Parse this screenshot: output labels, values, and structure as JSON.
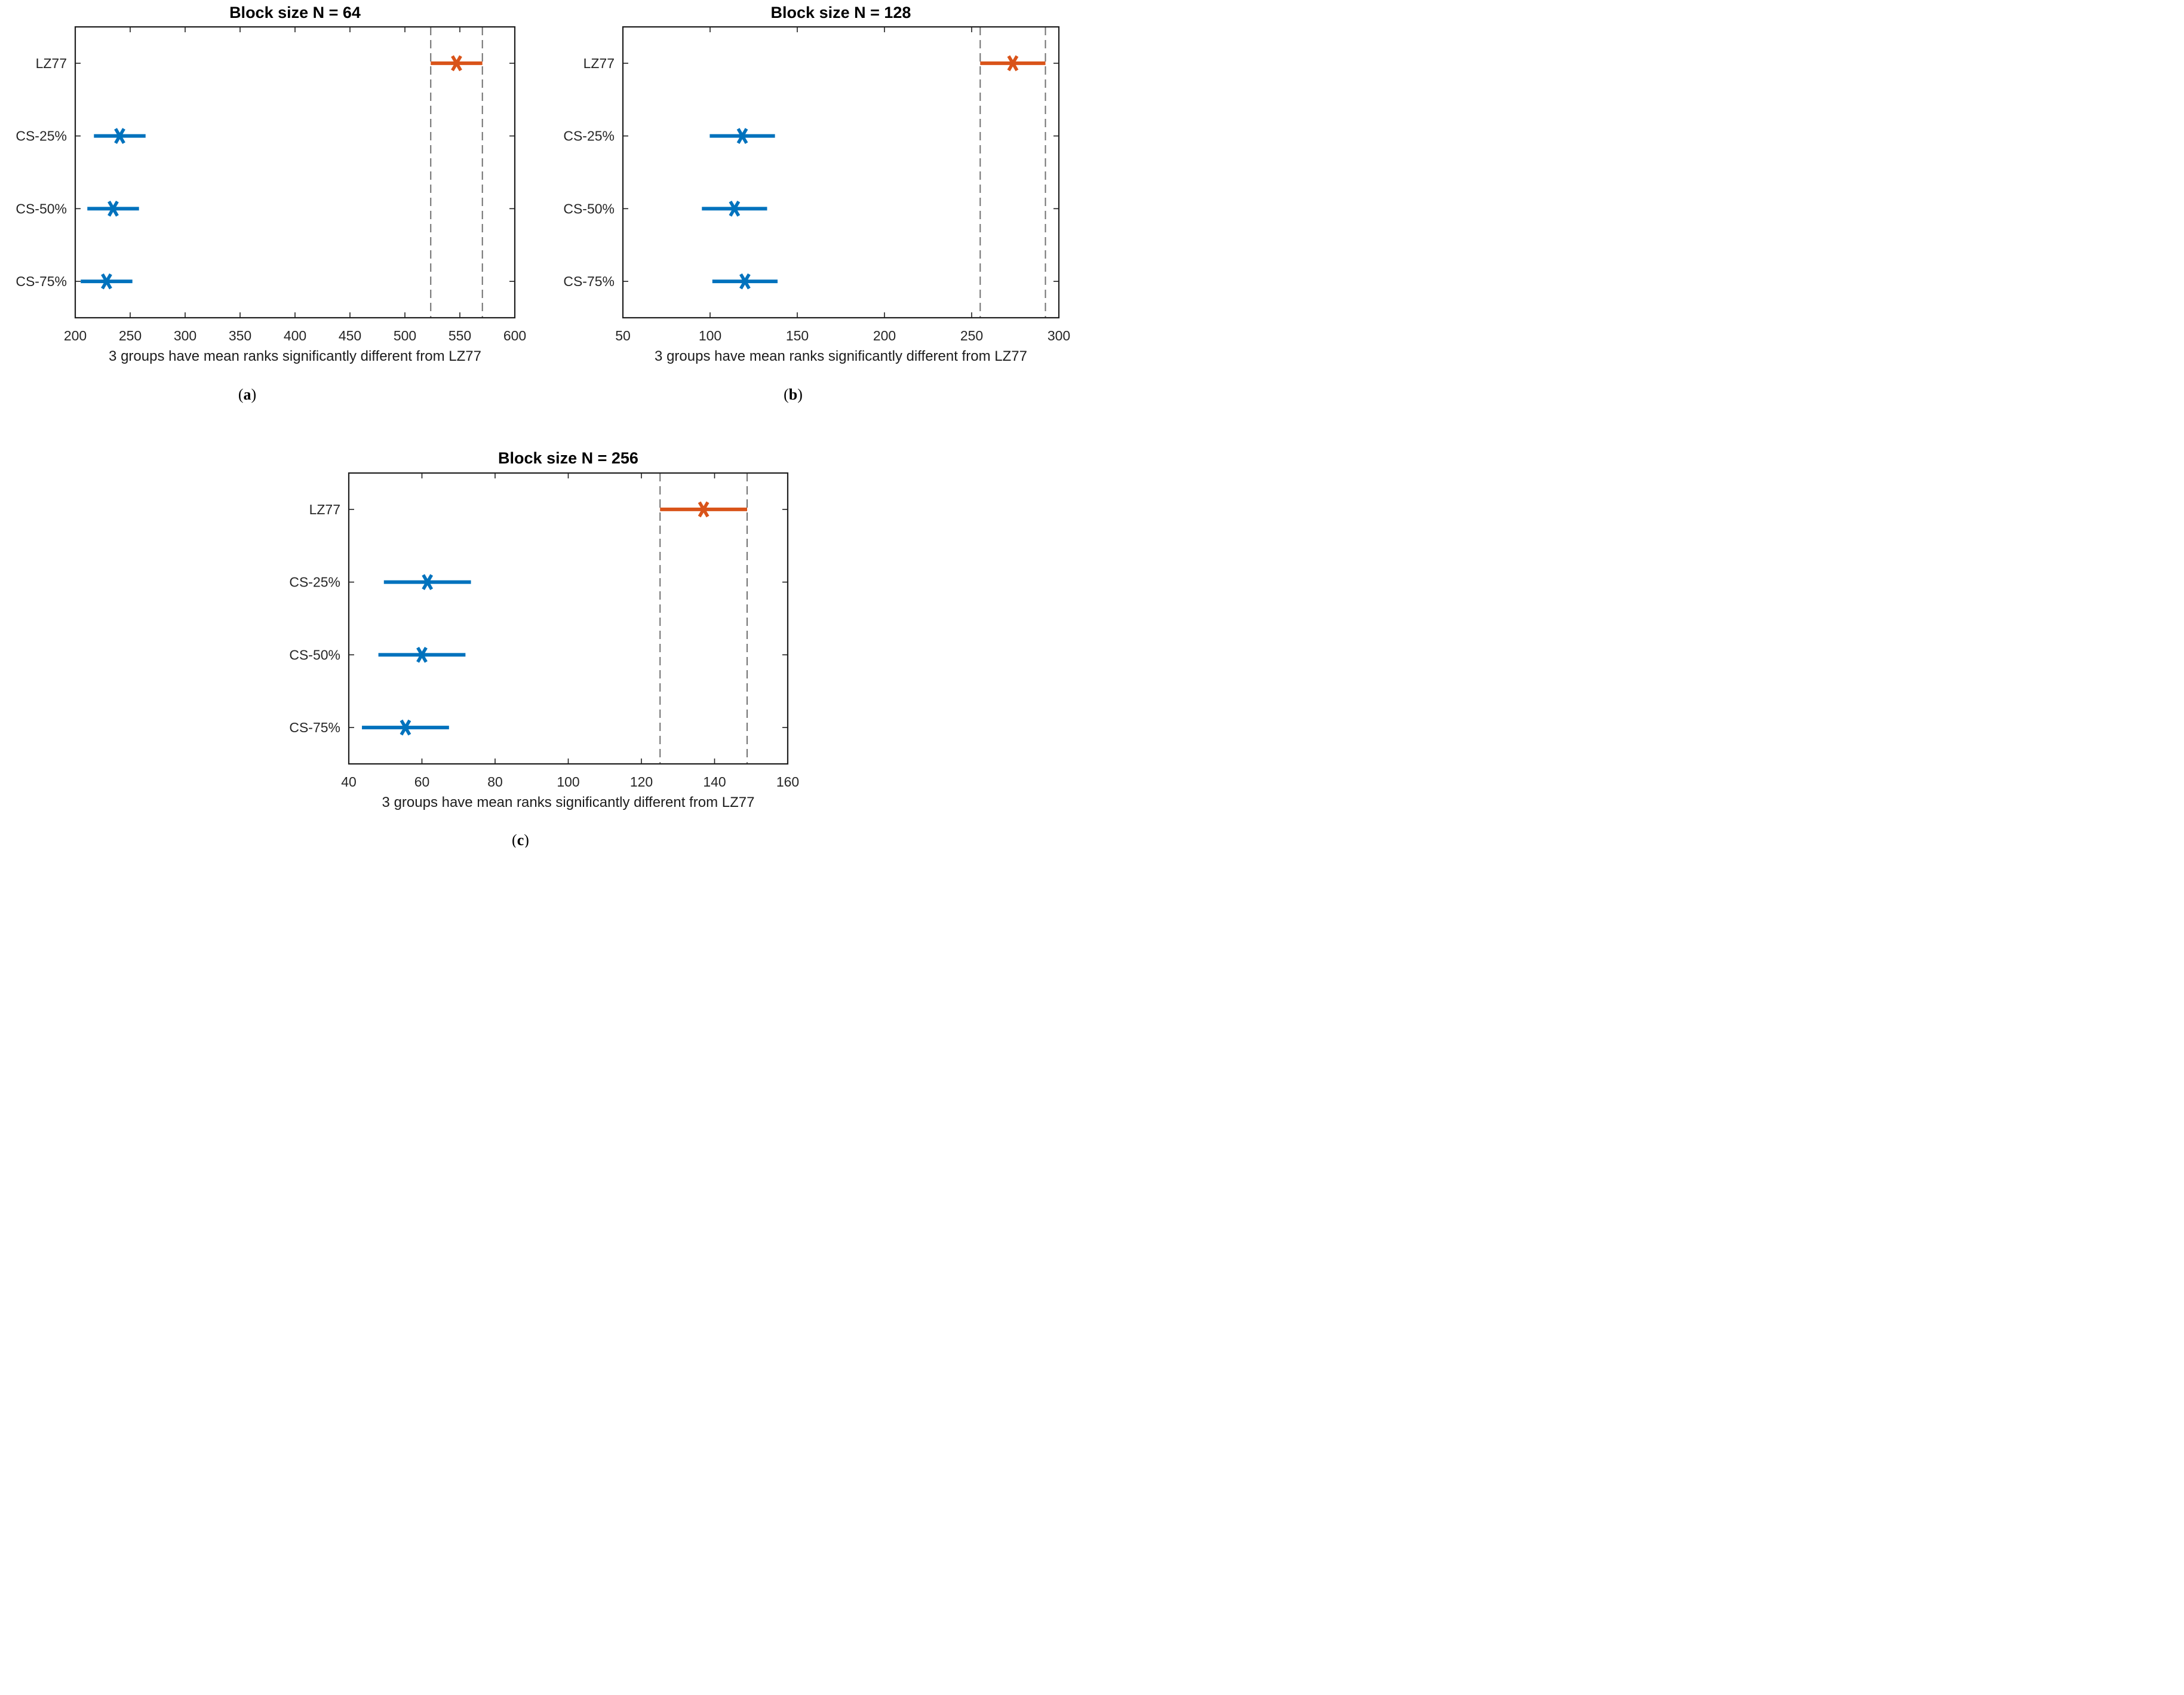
{
  "figure": {
    "colors": {
      "blue": "#0072BD",
      "orange": "#D95319",
      "dashed_line": "#707070",
      "axis": "#1f1f1f",
      "tick_label": "#262626"
    }
  },
  "chart_data": [
    {
      "id": "a",
      "type": "scatter",
      "subtype": "multiple-comparison-intervals",
      "title": "Block size N = 64",
      "xlabel": "3 groups have mean ranks significantly different from LZ77",
      "caption": {
        "open": "(",
        "letter": "a",
        "close": ")"
      },
      "ylabels_top_to_bottom": [
        "LZ77",
        "CS-25%",
        "CS-50%",
        "CS-75%"
      ],
      "groups": [
        {
          "label": "LZ77",
          "mean": 547.0,
          "lo": 523.5,
          "hi": 570.5,
          "color": "orange"
        },
        {
          "label": "CS-25%",
          "mean": 240.5,
          "lo": 217.0,
          "hi": 264.0,
          "color": "blue"
        },
        {
          "label": "CS-50%",
          "mean": 234.5,
          "lo": 211.0,
          "hi": 258.0,
          "color": "blue"
        },
        {
          "label": "CS-75%",
          "mean": 228.5,
          "lo": 205.0,
          "hi": 252.0,
          "color": "blue"
        }
      ],
      "comparison_interval": [
        523.5,
        570.5
      ],
      "xlim": [
        200,
        600
      ],
      "xticks": [
        200,
        250,
        300,
        350,
        400,
        450,
        500,
        550,
        600
      ],
      "grid": false,
      "legend": null
    },
    {
      "id": "b",
      "type": "scatter",
      "subtype": "multiple-comparison-intervals",
      "title": "Block size N = 128",
      "xlabel": "3 groups have mean ranks significantly different from LZ77",
      "caption": {
        "open": "(",
        "letter": "b",
        "close": ")"
      },
      "ylabels_top_to_bottom": [
        "LZ77",
        "CS-25%",
        "CS-50%",
        "CS-75%"
      ],
      "groups": [
        {
          "label": "LZ77",
          "mean": 273.6,
          "lo": 254.9,
          "hi": 292.3,
          "color": "orange"
        },
        {
          "label": "CS-25%",
          "mean": 118.5,
          "lo": 99.8,
          "hi": 137.2,
          "color": "blue"
        },
        {
          "label": "CS-50%",
          "mean": 114.0,
          "lo": 95.3,
          "hi": 132.7,
          "color": "blue"
        },
        {
          "label": "CS-75%",
          "mean": 120.0,
          "lo": 101.3,
          "hi": 138.7,
          "color": "blue"
        }
      ],
      "comparison_interval": [
        254.9,
        292.3
      ],
      "xlim": [
        50,
        300
      ],
      "xticks": [
        50,
        100,
        150,
        200,
        250,
        300
      ],
      "grid": false,
      "legend": null
    },
    {
      "id": "c",
      "type": "scatter",
      "subtype": "multiple-comparison-intervals",
      "title": "Block size N = 256",
      "xlabel": "3 groups have mean ranks significantly different from LZ77",
      "caption": {
        "open": "(",
        "letter": "c",
        "close": ")"
      },
      "ylabels_top_to_bottom": [
        "LZ77",
        "CS-25%",
        "CS-50%",
        "CS-75%"
      ],
      "groups": [
        {
          "label": "LZ77",
          "mean": 137.0,
          "lo": 125.1,
          "hi": 148.9,
          "color": "orange"
        },
        {
          "label": "CS-25%",
          "mean": 61.5,
          "lo": 49.6,
          "hi": 73.4,
          "color": "blue"
        },
        {
          "label": "CS-50%",
          "mean": 60.0,
          "lo": 48.1,
          "hi": 71.9,
          "color": "blue"
        },
        {
          "label": "CS-75%",
          "mean": 55.5,
          "lo": 43.6,
          "hi": 67.4,
          "color": "blue"
        }
      ],
      "comparison_interval": [
        125.1,
        148.9
      ],
      "xlim": [
        40,
        160
      ],
      "xticks": [
        40,
        60,
        80,
        100,
        120,
        140,
        160
      ],
      "grid": false,
      "legend": null
    }
  ]
}
